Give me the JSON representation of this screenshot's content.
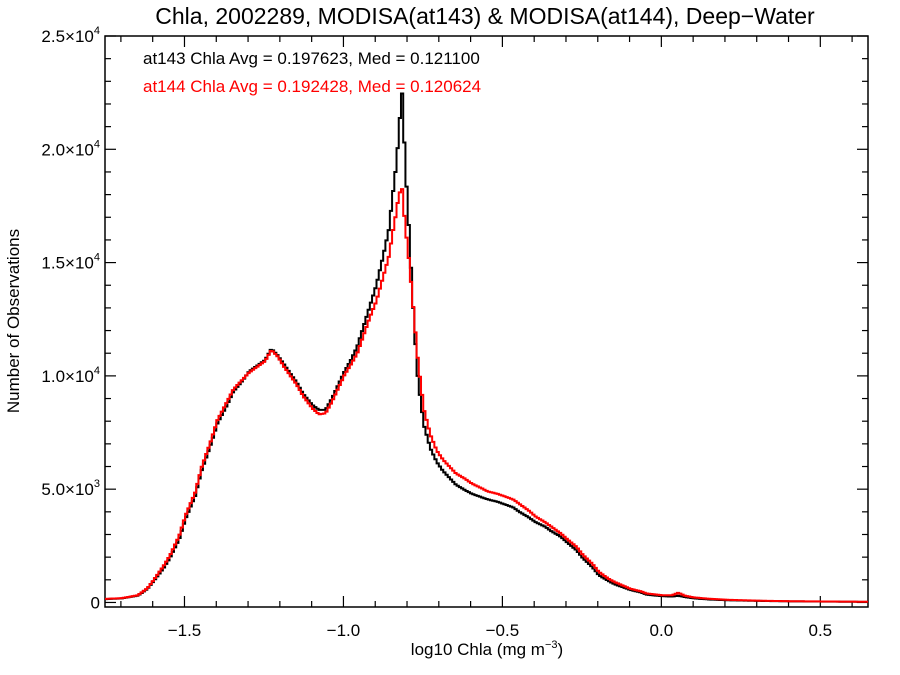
{
  "chart_data": {
    "type": "line",
    "title": "Chla, 2002289, MODISA(at143) & MODISA(at144), Deep−Water",
    "xlabel": "log10 Chla (mg m",
    "xlabel_exp": "−3",
    "xlabel_close": ")",
    "ylabel": "Number of Observations",
    "xlim": [
      -1.75,
      0.65
    ],
    "ylim": [
      -200,
      25000
    ],
    "xticks": [
      {
        "value": -1.5,
        "label": "−1.5"
      },
      {
        "value": -1.0,
        "label": "−1.0"
      },
      {
        "value": -0.5,
        "label": "−0.5"
      },
      {
        "value": 0.0,
        "label": "0.0"
      },
      {
        "value": 0.5,
        "label": "0.5"
      }
    ],
    "yticks": [
      {
        "value": 0,
        "mant": "0",
        "exp": ""
      },
      {
        "value": 5000,
        "mant": "5.0×10",
        "exp": "3"
      },
      {
        "value": 10000,
        "mant": "1.0×10",
        "exp": "4"
      },
      {
        "value": 15000,
        "mant": "1.5×10",
        "exp": "4"
      },
      {
        "value": 20000,
        "mant": "2.0×10",
        "exp": "4"
      },
      {
        "value": 25000,
        "mant": "2.5×10",
        "exp": "4"
      }
    ],
    "annotations": [
      {
        "text": "at143 Chla Avg = 0.197623, Med = 0.121100",
        "color": "#000000"
      },
      {
        "text": "at144 Chla Avg = 0.192428, Med = 0.120624",
        "color": "#ff0000"
      }
    ],
    "series": [
      {
        "color": "#000000",
        "points": [
          [
            -1.75,
            150
          ],
          [
            -1.7,
            180
          ],
          [
            -1.65,
            300
          ],
          [
            -1.62,
            600
          ],
          [
            -1.6,
            950
          ],
          [
            -1.57,
            1500
          ],
          [
            -1.55,
            1950
          ],
          [
            -1.52,
            2800
          ],
          [
            -1.5,
            3700
          ],
          [
            -1.47,
            4700
          ],
          [
            -1.45,
            5800
          ],
          [
            -1.42,
            7000
          ],
          [
            -1.4,
            7900
          ],
          [
            -1.37,
            8700
          ],
          [
            -1.35,
            9300
          ],
          [
            -1.32,
            9800
          ],
          [
            -1.3,
            10200
          ],
          [
            -1.27,
            10500
          ],
          [
            -1.25,
            10700
          ],
          [
            -1.23,
            11200
          ],
          [
            -1.21,
            10900
          ],
          [
            -1.19,
            10500
          ],
          [
            -1.17,
            10100
          ],
          [
            -1.15,
            9700
          ],
          [
            -1.13,
            9200
          ],
          [
            -1.1,
            8700
          ],
          [
            -1.08,
            8500
          ],
          [
            -1.06,
            8500
          ],
          [
            -1.04,
            9000
          ],
          [
            -1.02,
            9600
          ],
          [
            -1.0,
            10200
          ],
          [
            -0.98,
            10700
          ],
          [
            -0.96,
            11300
          ],
          [
            -0.94,
            12200
          ],
          [
            -0.92,
            13100
          ],
          [
            -0.9,
            14000
          ],
          [
            -0.88,
            15200
          ],
          [
            -0.86,
            16500
          ],
          [
            -0.85,
            17800
          ],
          [
            -0.84,
            19000
          ],
          [
            -0.83,
            20500
          ],
          [
            -0.82,
            22700
          ],
          [
            -0.815,
            21500
          ],
          [
            -0.81,
            19500
          ],
          [
            -0.8,
            17200
          ],
          [
            -0.79,
            14500
          ],
          [
            -0.78,
            12000
          ],
          [
            -0.77,
            10000
          ],
          [
            -0.76,
            8800
          ],
          [
            -0.75,
            7800
          ],
          [
            -0.73,
            6800
          ],
          [
            -0.71,
            6200
          ],
          [
            -0.69,
            5800
          ],
          [
            -0.67,
            5500
          ],
          [
            -0.65,
            5200
          ],
          [
            -0.62,
            4950
          ],
          [
            -0.6,
            4800
          ],
          [
            -0.57,
            4650
          ],
          [
            -0.55,
            4550
          ],
          [
            -0.52,
            4450
          ],
          [
            -0.5,
            4350
          ],
          [
            -0.47,
            4200
          ],
          [
            -0.45,
            4000
          ],
          [
            -0.42,
            3750
          ],
          [
            -0.4,
            3550
          ],
          [
            -0.37,
            3350
          ],
          [
            -0.35,
            3150
          ],
          [
            -0.32,
            2900
          ],
          [
            -0.3,
            2650
          ],
          [
            -0.27,
            2300
          ],
          [
            -0.25,
            1950
          ],
          [
            -0.22,
            1550
          ],
          [
            -0.2,
            1200
          ],
          [
            -0.17,
            950
          ],
          [
            -0.15,
            800
          ],
          [
            -0.12,
            650
          ],
          [
            -0.1,
            550
          ],
          [
            -0.07,
            450
          ],
          [
            -0.05,
            350
          ],
          [
            -0.02,
            300
          ],
          [
            0.0,
            280
          ],
          [
            0.03,
            260
          ],
          [
            0.05,
            300
          ],
          [
            0.07,
            240
          ],
          [
            0.1,
            180
          ],
          [
            0.15,
            130
          ],
          [
            0.2,
            100
          ],
          [
            0.3,
            70
          ],
          [
            0.4,
            50
          ],
          [
            0.5,
            40
          ],
          [
            0.6,
            30
          ],
          [
            0.65,
            25
          ]
        ]
      },
      {
        "color": "#ff0000",
        "points": [
          [
            -1.75,
            160
          ],
          [
            -1.7,
            190
          ],
          [
            -1.65,
            320
          ],
          [
            -1.62,
            630
          ],
          [
            -1.6,
            1000
          ],
          [
            -1.57,
            1600
          ],
          [
            -1.55,
            2050
          ],
          [
            -1.52,
            2950
          ],
          [
            -1.5,
            3850
          ],
          [
            -1.47,
            4850
          ],
          [
            -1.45,
            5950
          ],
          [
            -1.42,
            7150
          ],
          [
            -1.4,
            8050
          ],
          [
            -1.37,
            8850
          ],
          [
            -1.35,
            9400
          ],
          [
            -1.32,
            9850
          ],
          [
            -1.3,
            10150
          ],
          [
            -1.27,
            10450
          ],
          [
            -1.25,
            10650
          ],
          [
            -1.23,
            11150
          ],
          [
            -1.21,
            10850
          ],
          [
            -1.19,
            10400
          ],
          [
            -1.17,
            10000
          ],
          [
            -1.15,
            9600
          ],
          [
            -1.13,
            9100
          ],
          [
            -1.1,
            8550
          ],
          [
            -1.08,
            8300
          ],
          [
            -1.06,
            8350
          ],
          [
            -1.04,
            8850
          ],
          [
            -1.02,
            9450
          ],
          [
            -1.0,
            10050
          ],
          [
            -0.98,
            10500
          ],
          [
            -0.96,
            11000
          ],
          [
            -0.94,
            11800
          ],
          [
            -0.92,
            12600
          ],
          [
            -0.9,
            13300
          ],
          [
            -0.88,
            14300
          ],
          [
            -0.86,
            15300
          ],
          [
            -0.85,
            16200
          ],
          [
            -0.84,
            17000
          ],
          [
            -0.83,
            17900
          ],
          [
            -0.82,
            18400
          ],
          [
            -0.815,
            17600
          ],
          [
            -0.81,
            16700
          ],
          [
            -0.8,
            15500
          ],
          [
            -0.79,
            14000
          ],
          [
            -0.78,
            12400
          ],
          [
            -0.77,
            10800
          ],
          [
            -0.76,
            9600
          ],
          [
            -0.75,
            8500
          ],
          [
            -0.73,
            7400
          ],
          [
            -0.71,
            6700
          ],
          [
            -0.69,
            6300
          ],
          [
            -0.67,
            6000
          ],
          [
            -0.65,
            5700
          ],
          [
            -0.62,
            5450
          ],
          [
            -0.6,
            5250
          ],
          [
            -0.57,
            5050
          ],
          [
            -0.55,
            4900
          ],
          [
            -0.52,
            4800
          ],
          [
            -0.5,
            4700
          ],
          [
            -0.47,
            4550
          ],
          [
            -0.45,
            4350
          ],
          [
            -0.42,
            4050
          ],
          [
            -0.4,
            3800
          ],
          [
            -0.37,
            3550
          ],
          [
            -0.35,
            3350
          ],
          [
            -0.32,
            3050
          ],
          [
            -0.3,
            2800
          ],
          [
            -0.27,
            2450
          ],
          [
            -0.25,
            2100
          ],
          [
            -0.22,
            1700
          ],
          [
            -0.2,
            1350
          ],
          [
            -0.17,
            1050
          ],
          [
            -0.15,
            900
          ],
          [
            -0.12,
            720
          ],
          [
            -0.1,
            600
          ],
          [
            -0.07,
            500
          ],
          [
            -0.05,
            400
          ],
          [
            -0.02,
            350
          ],
          [
            0.0,
            320
          ],
          [
            0.03,
            320
          ],
          [
            0.05,
            430
          ],
          [
            0.07,
            300
          ],
          [
            0.1,
            220
          ],
          [
            0.15,
            160
          ],
          [
            0.2,
            120
          ],
          [
            0.3,
            80
          ],
          [
            0.4,
            55
          ],
          [
            0.5,
            45
          ],
          [
            0.6,
            35
          ],
          [
            0.65,
            30
          ]
        ]
      }
    ]
  }
}
